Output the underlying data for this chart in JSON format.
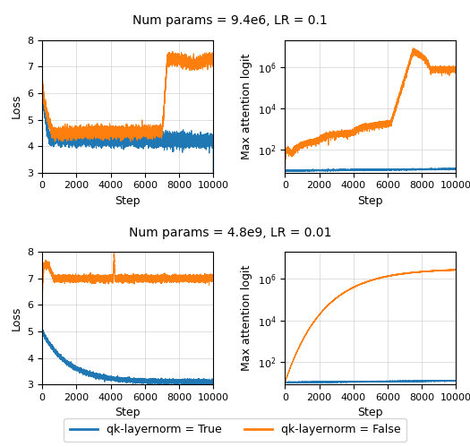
{
  "title_top": "Num params = 9.4e6, LR = 0.1",
  "title_bottom": "Num params = 4.8e9, LR = 0.01",
  "xlabel": "Step",
  "ylabel_loss": "Loss",
  "ylabel_attn": "Max attention logit",
  "legend_true": "qk-layernorm = True",
  "legend_false": "qk-layernorm = False",
  "color_true": "#1f77b4",
  "color_false": "#ff7f0e",
  "steps": 10000,
  "loss_ylim": [
    3,
    8
  ],
  "loss_yticks": [
    3,
    4,
    5,
    6,
    7,
    8
  ],
  "attn_ylim_log": [
    8,
    20000000.0
  ],
  "xticks": [
    0,
    2000,
    4000,
    6000,
    8000,
    10000
  ]
}
